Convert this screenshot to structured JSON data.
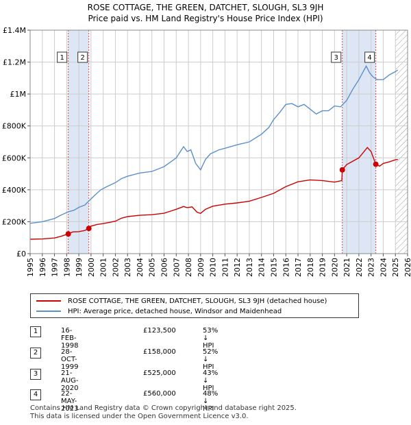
{
  "title_line1": "ROSE COTTAGE, THE GREEN, DATCHET, SLOUGH, SL3 9JH",
  "title_line2": "Price paid vs. HM Land Registry's House Price Index (HPI)",
  "colors": {
    "price_paid": "#cc0000",
    "hpi": "#5b8fc9",
    "shade": "#dde6f5",
    "grid": "#cccccc",
    "marker_line": "#dd4444"
  },
  "chart_data": {
    "type": "line",
    "title": "ROSE COTTAGE, THE GREEN, DATCHET, SLOUGH, SL3 9JH",
    "subtitle": "Price paid vs. HM Land Registry's House Price Index (HPI)",
    "xlabel": "",
    "ylabel": "",
    "xlim": [
      1995,
      2026
    ],
    "ylim": [
      0,
      1400000
    ],
    "x_ticks": [
      1995,
      1996,
      1997,
      1998,
      1999,
      2000,
      2001,
      2002,
      2003,
      2004,
      2005,
      2006,
      2007,
      2008,
      2009,
      2010,
      2011,
      2012,
      2013,
      2014,
      2015,
      2016,
      2017,
      2018,
      2019,
      2020,
      2021,
      2022,
      2023,
      2024,
      2025,
      2026
    ],
    "y_ticks": [
      0,
      200000,
      400000,
      600000,
      800000,
      1000000,
      1200000,
      1400000
    ],
    "y_tick_labels": [
      "£0",
      "£200K",
      "£400K",
      "£600K",
      "£800K",
      "£1M",
      "£1.2M",
      "£1.4M"
    ],
    "grid": true,
    "shaded_periods": [
      [
        1998.13,
        1999.82
      ],
      [
        2020.64,
        2023.39
      ]
    ],
    "hatched_from": 2025.0,
    "series": [
      {
        "name": "ROSE COTTAGE, THE GREEN, DATCHET, SLOUGH, SL3 9JH (detached house)",
        "x": [
          1995.0,
          1996.0,
          1997.0,
          1997.5,
          1998.13,
          1998.5,
          1999.0,
          1999.5,
          1999.82,
          2000.0,
          2000.5,
          2001.0,
          2002.0,
          2002.5,
          2003.0,
          2004.0,
          2005.0,
          2006.0,
          2007.0,
          2007.6,
          2007.9,
          2008.3,
          2008.7,
          2009.0,
          2009.4,
          2010.0,
          2011.0,
          2012.0,
          2013.0,
          2014.0,
          2015.0,
          2016.0,
          2017.0,
          2018.0,
          2019.0,
          2020.0,
          2020.6,
          2020.64,
          2021.0,
          2022.0,
          2022.7,
          2023.0,
          2023.39,
          2023.7,
          2024.0,
          2024.5,
          2025.0,
          2025.2
        ],
        "values": [
          90000,
          92000,
          98000,
          108000,
          123500,
          136000,
          138000,
          145000,
          158000,
          172000,
          183000,
          188000,
          203000,
          222000,
          232000,
          240000,
          244000,
          253000,
          278000,
          295000,
          288000,
          293000,
          260000,
          252000,
          278000,
          297000,
          310000,
          318000,
          328000,
          352000,
          378000,
          420000,
          450000,
          462000,
          458000,
          448000,
          458000,
          525000,
          558000,
          600000,
          665000,
          640000,
          560000,
          548000,
          565000,
          575000,
          588000,
          590000
        ]
      },
      {
        "name": "HPI: Average price, detached house, Windsor and Maidenhead",
        "x": [
          1995.0,
          1996.0,
          1997.0,
          1997.5,
          1998.13,
          1998.6,
          1999.0,
          1999.5,
          1999.82,
          2000.3,
          2000.8,
          2001.3,
          2002.0,
          2002.5,
          2003.0,
          2004.0,
          2005.0,
          2006.0,
          2007.0,
          2007.6,
          2007.9,
          2008.2,
          2008.6,
          2009.0,
          2009.4,
          2009.8,
          2010.5,
          2011.0,
          2012.0,
          2013.0,
          2014.0,
          2014.6,
          2015.0,
          2015.5,
          2016.0,
          2016.5,
          2017.0,
          2017.5,
          2018.0,
          2018.5,
          2019.0,
          2019.5,
          2020.0,
          2020.5,
          2021.0,
          2021.5,
          2022.0,
          2022.6,
          2022.9,
          2023.2,
          2023.5,
          2024.0,
          2024.5,
          2025.0,
          2025.2
        ],
        "values": [
          190000,
          200000,
          220000,
          240000,
          262000,
          272000,
          290000,
          305000,
          330000,
          365000,
          400000,
          420000,
          445000,
          470000,
          485000,
          505000,
          515000,
          545000,
          600000,
          670000,
          640000,
          650000,
          565000,
          525000,
          590000,
          625000,
          650000,
          660000,
          682000,
          700000,
          748000,
          790000,
          840000,
          885000,
          935000,
          940000,
          920000,
          935000,
          905000,
          875000,
          895000,
          895000,
          925000,
          920000,
          960000,
          1030000,
          1090000,
          1175000,
          1130000,
          1105000,
          1090000,
          1090000,
          1120000,
          1140000,
          1150000
        ]
      }
    ],
    "sales": [
      {
        "label": "1",
        "x": 1998.13,
        "price": 123500
      },
      {
        "label": "2",
        "x": 1999.82,
        "price": 158000
      },
      {
        "label": "3",
        "x": 2020.64,
        "price": 525000
      },
      {
        "label": "4",
        "x": 2023.39,
        "price": 560000
      }
    ]
  },
  "legend": {
    "price_paid_label": "ROSE COTTAGE, THE GREEN, DATCHET, SLOUGH, SL3 9JH (detached house)",
    "hpi_label": "HPI: Average price, detached house, Windsor and Maidenhead"
  },
  "transactions": [
    {
      "num": "1",
      "date": "16-FEB-1998",
      "price": "£123,500",
      "hpi": "53% ↓ HPI"
    },
    {
      "num": "2",
      "date": "28-OCT-1999",
      "price": "£158,000",
      "hpi": "52% ↓ HPI"
    },
    {
      "num": "3",
      "date": "21-AUG-2020",
      "price": "£525,000",
      "hpi": "43% ↓ HPI"
    },
    {
      "num": "4",
      "date": "22-MAY-2023",
      "price": "£560,000",
      "hpi": "48% ↓ HPI"
    }
  ],
  "footer": {
    "line1": "Contains HM Land Registry data © Crown copyright and database right 2025.",
    "line2": "This data is licensed under the Open Government Licence v3.0."
  }
}
